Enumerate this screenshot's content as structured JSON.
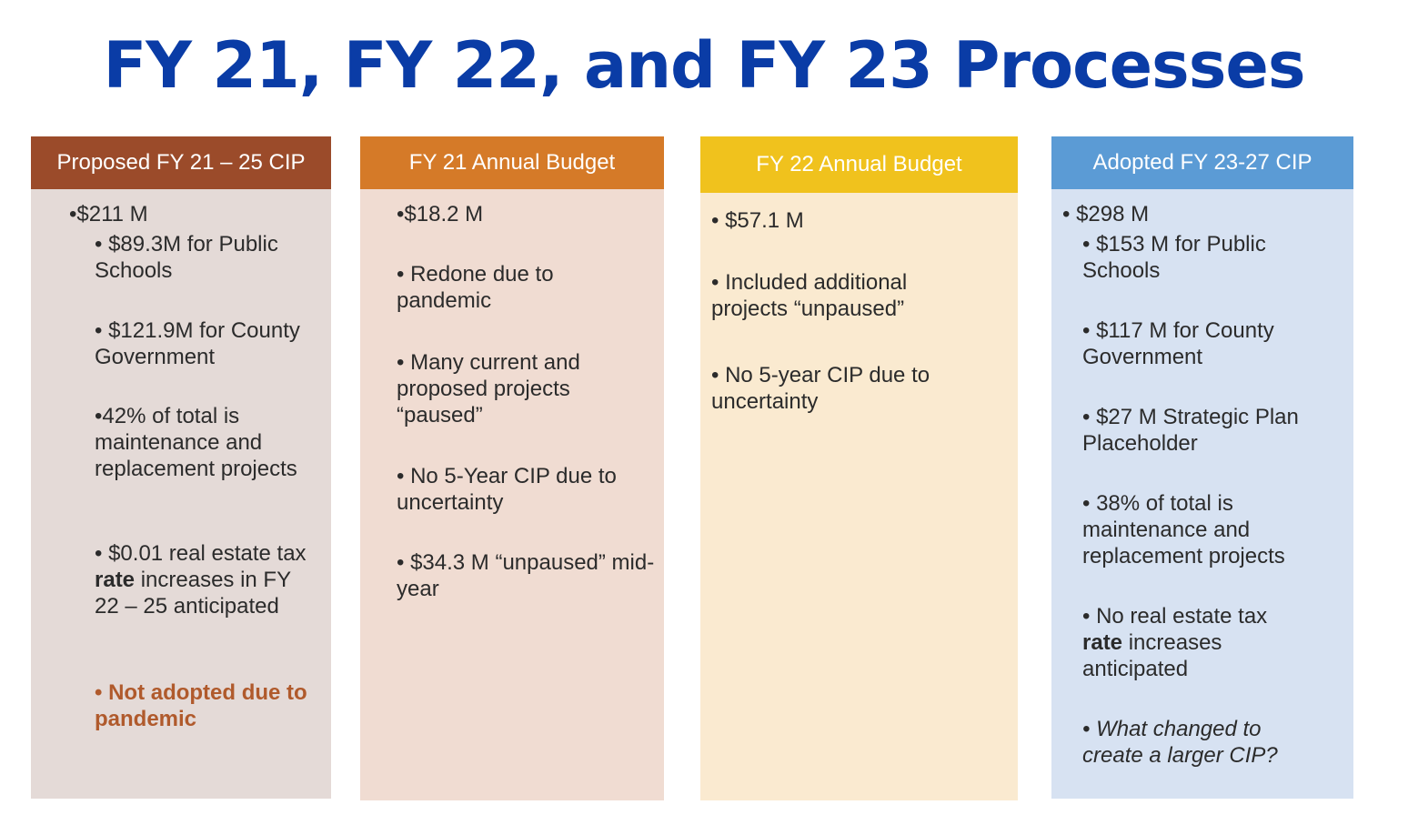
{
  "title": "FY 21, FY 22, and FY 23 Processes",
  "colors": {
    "title": "#0a3ca6",
    "col1_header": "#9b4b2a",
    "col1_body": "#e4dad7",
    "col2_header": "#d57a28",
    "col2_body": "#f0dcd2",
    "col3_header": "#f0c21d",
    "col3_body": "#faead0",
    "col4_header": "#5b9bd5",
    "col4_body": "#d7e2f2",
    "accent_text": "#b05a2c"
  },
  "columns": [
    {
      "header": "Proposed FY 21 – 25 CIP",
      "items": [
        {
          "bullet": "•",
          "text": "$211 M"
        },
        {
          "bullet": "•",
          "text": " $89.3M for Public Schools"
        },
        {
          "bullet": "•",
          "text": " $121.9M for County Government"
        },
        {
          "bullet": "•",
          "text": "42% of total is maintenance and replacement projects"
        },
        {
          "bullet": "•",
          "text_before": " $0.01 real estate tax ",
          "bold": "rate",
          "text_after": " increases in FY 22 – 25 anticipated"
        },
        {
          "bullet": "•",
          "text": " Not adopted due to pandemic"
        }
      ]
    },
    {
      "header": "FY 21 Annual Budget",
      "items": [
        {
          "bullet": "•",
          "text": "$18.2 M"
        },
        {
          "bullet": "•",
          "text": " Redone due to pandemic"
        },
        {
          "bullet": "•",
          "text": " Many current and proposed projects “paused”"
        },
        {
          "bullet": "•",
          "text": " No 5-Year CIP due to uncertainty"
        },
        {
          "bullet": "•",
          "text": " $34.3 M “unpaused” mid-year"
        }
      ]
    },
    {
      "header": "FY 22 Annual Budget",
      "items": [
        {
          "bullet": "•",
          "text": " $57.1 M"
        },
        {
          "bullet": "•",
          "text": " Included additional projects “unpaused”"
        },
        {
          "bullet": "•",
          "text": " No 5-year CIP due to uncertainty"
        }
      ]
    },
    {
      "header": "Adopted FY 23-27 CIP",
      "items": [
        {
          "bullet": "•",
          "text": " $298 M"
        },
        {
          "bullet": "•",
          "text": " $153 M for Public Schools"
        },
        {
          "bullet": "•",
          "text": " $117 M for County Government"
        },
        {
          "bullet": "•",
          "text": " $27 M Strategic Plan Placeholder"
        },
        {
          "bullet": "•",
          "text": " 38% of total is maintenance and replacement projects"
        },
        {
          "bullet": "•",
          "text_before": " No real estate tax ",
          "bold": "rate",
          "text_after": " increases anticipated"
        },
        {
          "bullet": "•",
          "text": " What changed to create a larger CIP?"
        }
      ]
    }
  ]
}
